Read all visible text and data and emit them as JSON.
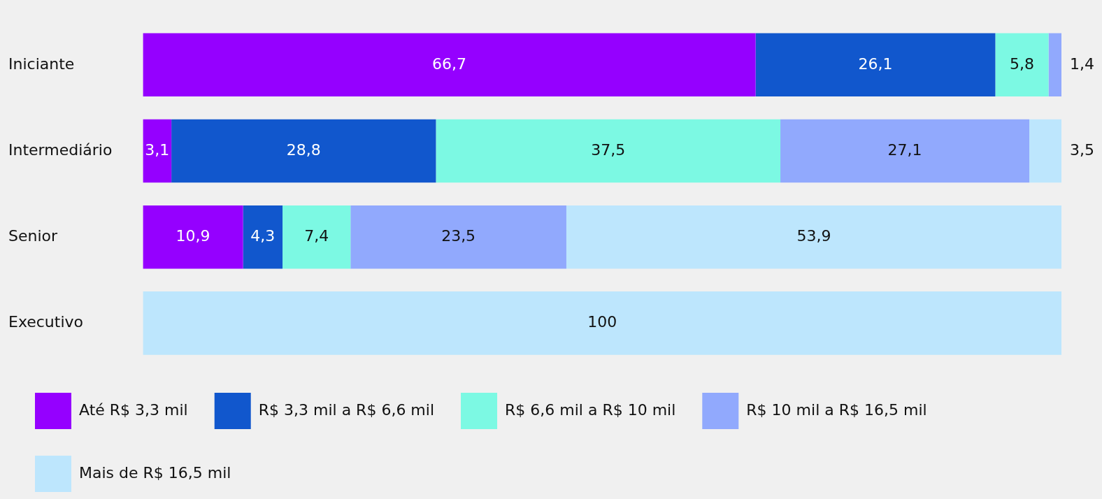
{
  "chart_data": {
    "type": "bar",
    "orientation": "horizontal",
    "stacked": true,
    "legend": "bottom",
    "tick_labels": "y",
    "categories": [
      "Iniciante",
      "Intermediário",
      "Senior",
      "Executivo"
    ],
    "xlim": [
      0,
      100
    ],
    "series": [
      {
        "name": "Até R$ 3,3 mil",
        "color": "#9500ff",
        "values": [
          66.7,
          3.1,
          10.9,
          null
        ],
        "value_labels": [
          "66,7",
          "3,1",
          "10,9",
          null
        ]
      },
      {
        "name": "R$ 3,3 mil a R$ 6,6 mil",
        "color": "#1157cd",
        "values": [
          26.1,
          28.8,
          4.3,
          null
        ],
        "value_labels": [
          "26,1",
          "28,8",
          "4,3",
          null
        ]
      },
      {
        "name": "R$ 6,6 mil a R$ 10 mil",
        "color": "#7cf9e3",
        "values": [
          5.8,
          37.5,
          7.4,
          null
        ],
        "value_labels": [
          "5,8",
          "37,5",
          "7,4",
          null
        ]
      },
      {
        "name": "R$ 10 mil a R$ 16,5 mil",
        "color": "#91a9fd",
        "values": [
          1.4,
          27.1,
          23.5,
          null
        ],
        "value_labels": [
          "1,4",
          "27,1",
          "23,5",
          null
        ]
      },
      {
        "name": "Mais de R$ 16,5 mil",
        "color": "#bde6fd",
        "values": [
          null,
          3.5,
          53.9,
          100
        ],
        "value_labels": [
          null,
          "3,5",
          "53,9",
          "100"
        ]
      }
    ]
  }
}
